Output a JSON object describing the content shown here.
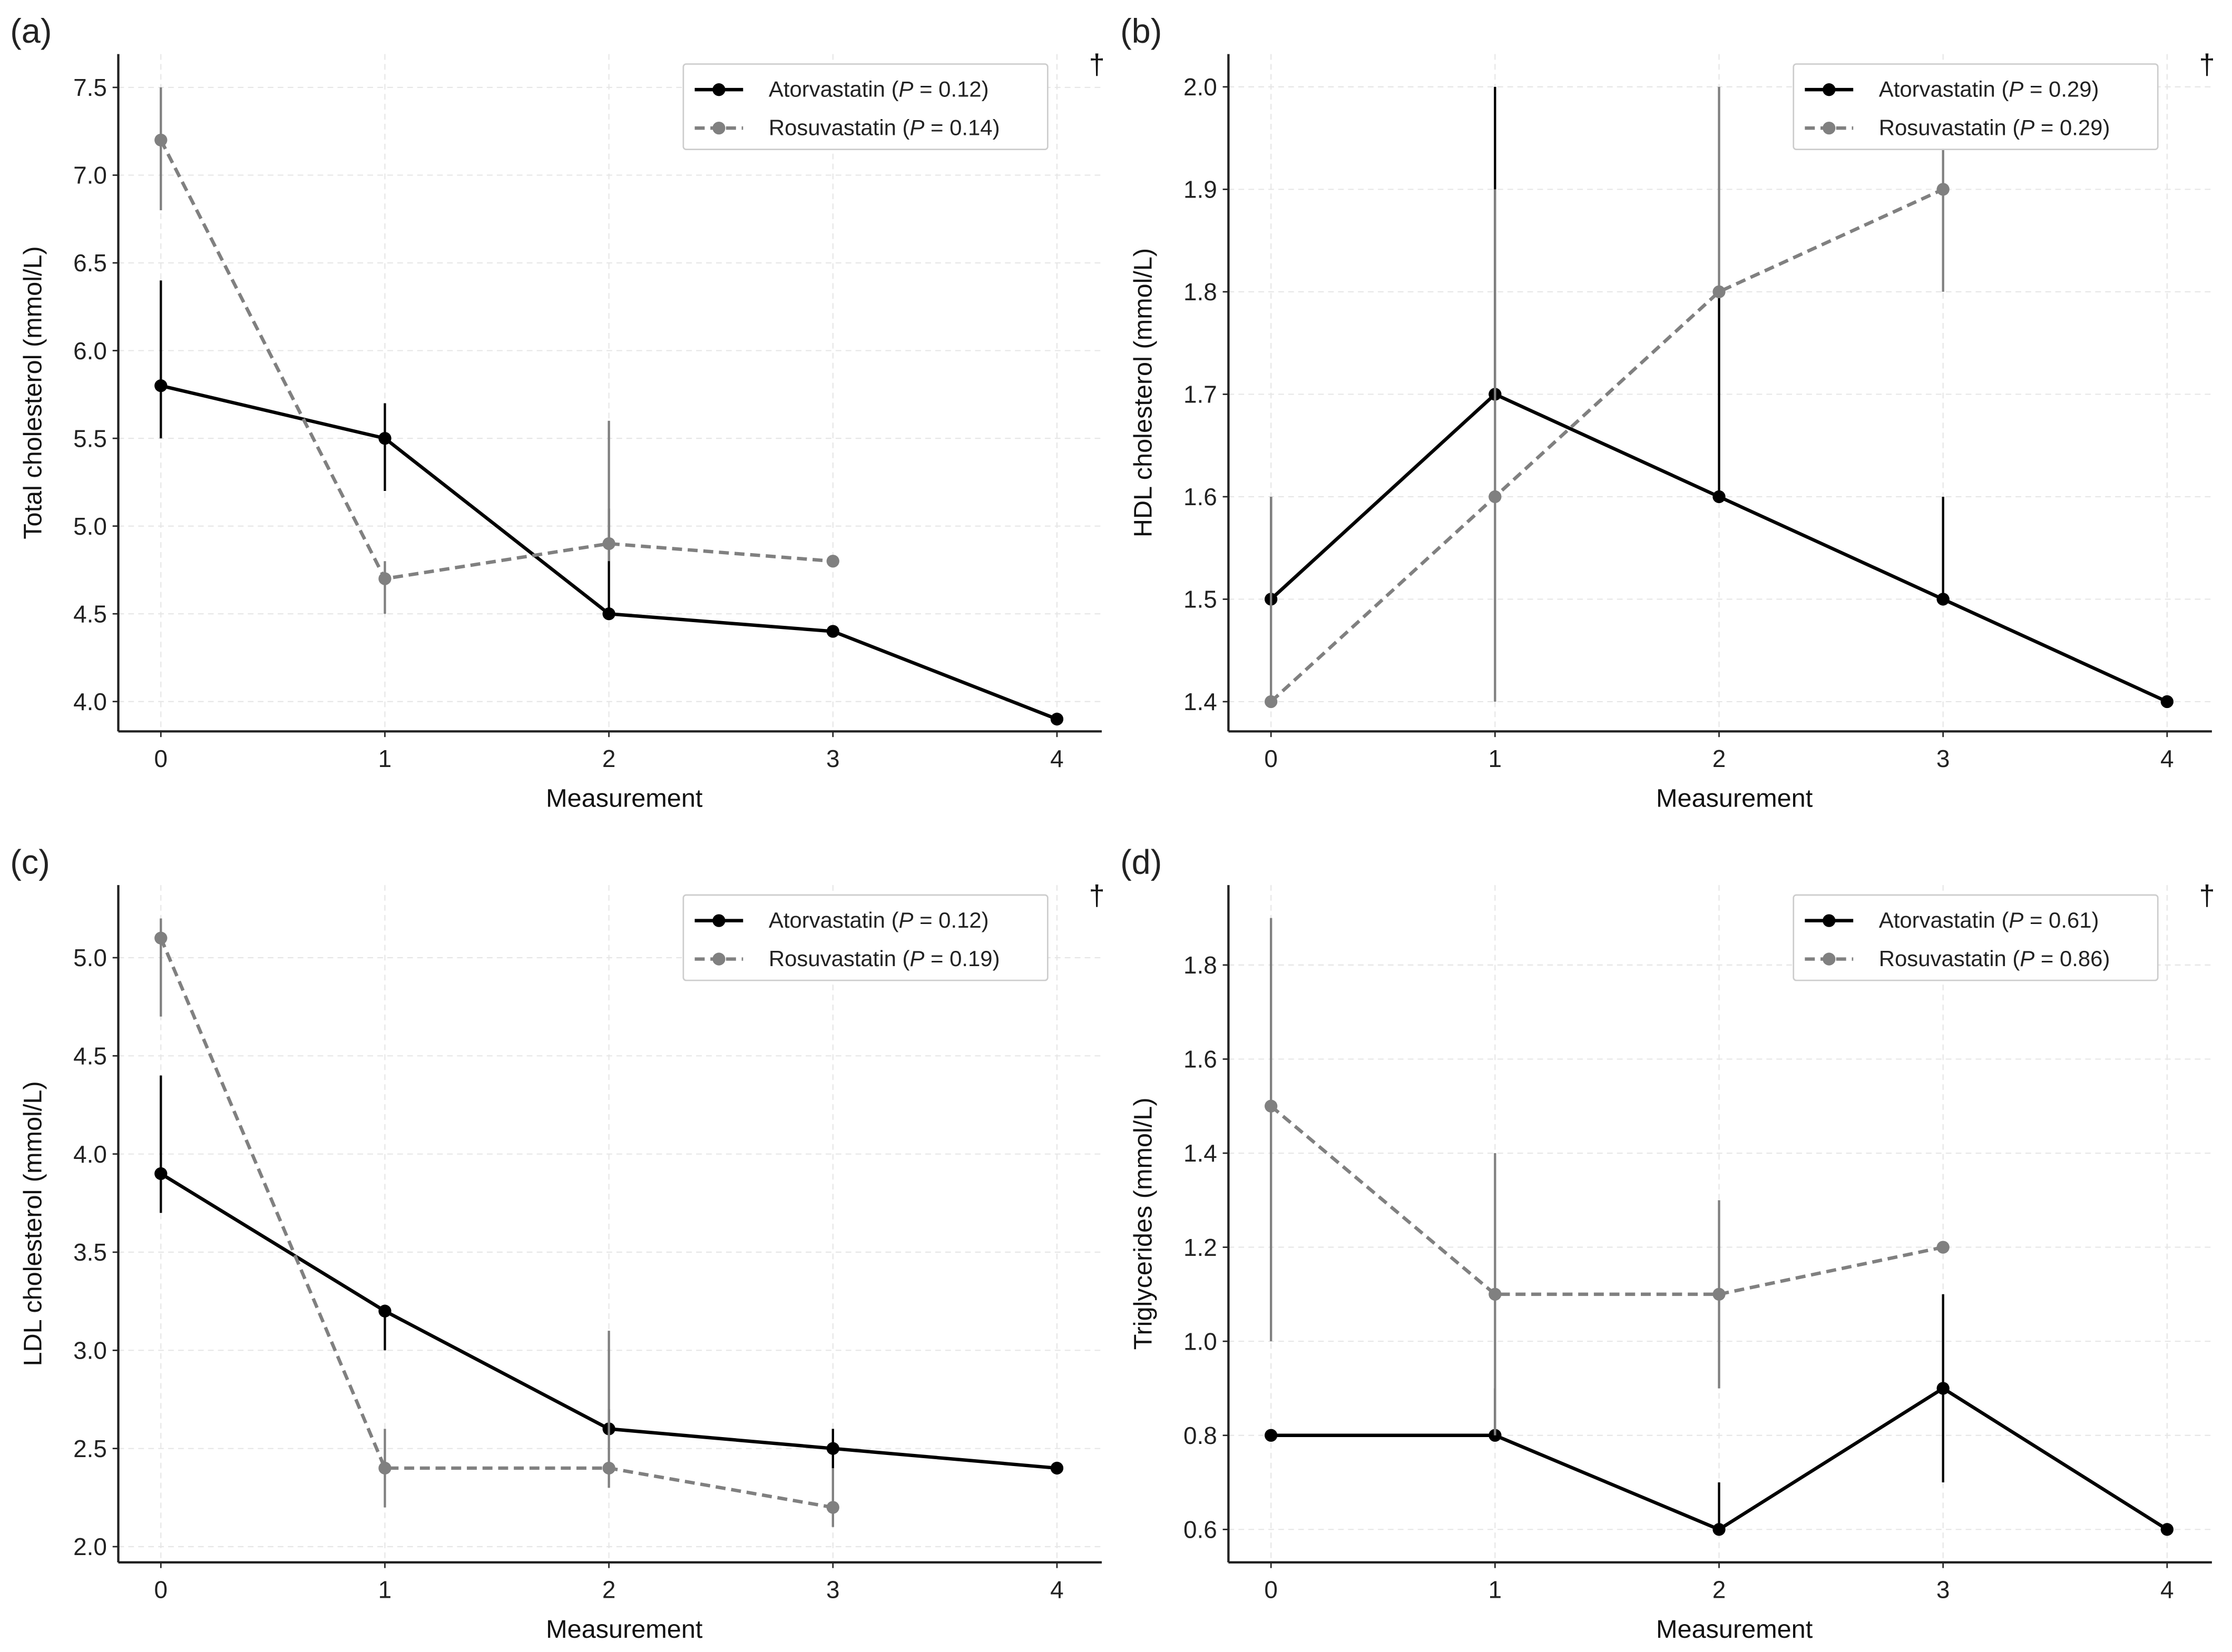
{
  "chart_data": [
    {
      "type": "line",
      "panel_label": "(a)",
      "xlabel": "Measurement",
      "ylabel": "Total cholesterol (mmol/L)",
      "x": [
        0,
        1,
        2,
        3,
        4
      ],
      "xticks": [
        "0",
        "1",
        "2",
        "3",
        "4"
      ],
      "xlim": [
        -0.19,
        4.2
      ],
      "ylim": [
        3.83,
        7.69
      ],
      "yticks": [
        "4.0",
        "4.5",
        "5.0",
        "5.5",
        "6.0",
        "6.5",
        "7.0",
        "7.5"
      ],
      "grid": true,
      "legend_position": "top-right",
      "annotation": "†",
      "series": [
        {
          "name": "Atorvastatin",
          "p_symbol": "P",
          "p_value": "0.12",
          "color": "#000000",
          "dashed": false,
          "values": [
            5.8,
            5.5,
            4.5,
            4.4,
            3.9
          ],
          "error": [
            [
              5.5,
              6.4
            ],
            [
              5.2,
              5.7
            ],
            [
              4.5,
              5.1
            ],
            null,
            null
          ]
        },
        {
          "name": "Rosuvastatin",
          "p_symbol": "P",
          "p_value": "0.14",
          "color": "#808080",
          "dashed": true,
          "values": [
            7.2,
            4.7,
            4.9,
            4.8,
            null
          ],
          "error": [
            [
              6.8,
              7.5
            ],
            [
              4.5,
              4.8
            ],
            [
              4.8,
              5.6
            ],
            null,
            null
          ]
        }
      ]
    },
    {
      "type": "line",
      "panel_label": "(b)",
      "xlabel": "Measurement",
      "ylabel": "HDL cholesterol (mmol/L)",
      "x": [
        0,
        1,
        2,
        3,
        4
      ],
      "xticks": [
        "0",
        "1",
        "2",
        "3",
        "4"
      ],
      "xlim": [
        -0.19,
        4.2
      ],
      "ylim": [
        1.371,
        2.032
      ],
      "yticks": [
        "1.4",
        "1.5",
        "1.6",
        "1.7",
        "1.8",
        "1.9",
        "2.0"
      ],
      "grid": true,
      "legend_position": "top-right",
      "annotation": "†",
      "series": [
        {
          "name": "Atorvastatin",
          "p_symbol": "P",
          "p_value": "0.29",
          "color": "#000000",
          "dashed": false,
          "values": [
            1.5,
            1.7,
            1.6,
            1.5,
            1.4
          ],
          "error": [
            [
              1.5,
              1.6
            ],
            [
              1.7,
              2.0
            ],
            [
              1.6,
              1.8
            ],
            [
              1.5,
              1.6
            ],
            null
          ]
        },
        {
          "name": "Rosuvastatin",
          "p_symbol": "P",
          "p_value": "0.29",
          "color": "#808080",
          "dashed": true,
          "values": [
            1.4,
            1.6,
            1.8,
            1.9,
            null
          ],
          "error": [
            [
              1.4,
              1.6
            ],
            [
              1.4,
              1.9
            ],
            [
              1.8,
              2.0
            ],
            [
              1.8,
              1.95
            ],
            null
          ]
        }
      ]
    },
    {
      "type": "line",
      "panel_label": "(c)",
      "xlabel": "Measurement",
      "ylabel": "LDL cholesterol (mmol/L)",
      "x": [
        0,
        1,
        2,
        3,
        4
      ],
      "xticks": [
        "0",
        "1",
        "2",
        "3",
        "4"
      ],
      "xlim": [
        -0.19,
        4.2
      ],
      "ylim": [
        1.92,
        5.37
      ],
      "yticks": [
        "2.0",
        "2.5",
        "3.0",
        "3.5",
        "4.0",
        "4.5",
        "5.0"
      ],
      "grid": true,
      "legend_position": "top-right",
      "annotation": "†",
      "series": [
        {
          "name": "Atorvastatin",
          "p_symbol": "P",
          "p_value": "0.12",
          "color": "#000000",
          "dashed": false,
          "values": [
            3.9,
            3.2,
            2.6,
            2.5,
            2.4
          ],
          "error": [
            [
              3.7,
              4.4
            ],
            [
              3.0,
              3.2
            ],
            [
              2.6,
              2.7
            ],
            [
              2.4,
              2.6
            ],
            null
          ]
        },
        {
          "name": "Rosuvastatin",
          "p_symbol": "P",
          "p_value": "0.19",
          "color": "#808080",
          "dashed": true,
          "values": [
            5.1,
            2.4,
            2.4,
            2.2,
            null
          ],
          "error": [
            [
              4.7,
              5.2
            ],
            [
              2.2,
              2.6
            ],
            [
              2.3,
              3.1
            ],
            [
              2.1,
              2.4
            ],
            null
          ]
        }
      ]
    },
    {
      "type": "line",
      "panel_label": "(d)",
      "xlabel": "Measurement",
      "ylabel": "Triglycerides (mmol/L)",
      "x": [
        0,
        1,
        2,
        3,
        4
      ],
      "xticks": [
        "0",
        "1",
        "2",
        "3",
        "4"
      ],
      "xlim": [
        -0.19,
        4.2
      ],
      "ylim": [
        0.53,
        1.97
      ],
      "yticks": [
        "0.6",
        "0.8",
        "1.0",
        "1.2",
        "1.4",
        "1.6",
        "1.8"
      ],
      "grid": true,
      "legend_position": "top-right",
      "annotation": "†",
      "series": [
        {
          "name": "Atorvastatin",
          "p_symbol": "P",
          "p_value": "0.61",
          "color": "#000000",
          "dashed": false,
          "values": [
            0.8,
            0.8,
            0.6,
            0.9,
            0.6
          ],
          "error": [
            null,
            [
              0.8,
              0.9
            ],
            [
              0.6,
              0.7
            ],
            [
              0.7,
              1.1
            ],
            null
          ]
        },
        {
          "name": "Rosuvastatin",
          "p_symbol": "P",
          "p_value": "0.86",
          "color": "#808080",
          "dashed": true,
          "values": [
            1.5,
            1.1,
            1.1,
            1.2,
            null
          ],
          "error": [
            [
              1.0,
              1.9
            ],
            [
              0.8,
              1.4
            ],
            [
              0.9,
              1.3
            ],
            null,
            null
          ]
        }
      ]
    }
  ]
}
